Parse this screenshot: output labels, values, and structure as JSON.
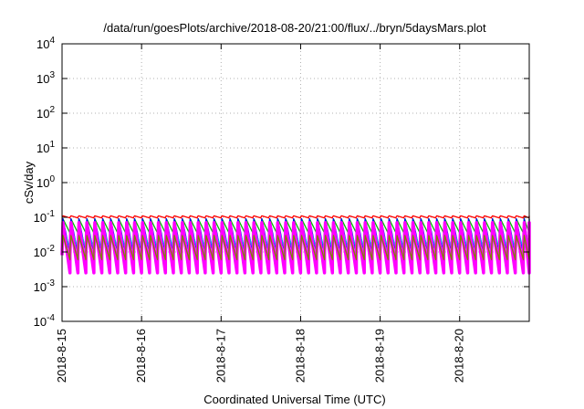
{
  "chart_data": {
    "type": "area",
    "title": "/data/run/goesPlots/archive/2018-08-20/21:00/flux/../bryn/5daysMars.plot",
    "xlabel": "Coordinated Universal Time (UTC)",
    "ylabel": "cSv/day",
    "yscale": "log",
    "ylim": [
      0.0001,
      10000
    ],
    "xlim": [
      "2018-08-15T00:00",
      "2018-08-20T21:00"
    ],
    "grid": true,
    "y_ticks": [
      {
        "base": "10",
        "exp": "-4"
      },
      {
        "base": "10",
        "exp": "-3"
      },
      {
        "base": "10",
        "exp": "-2"
      },
      {
        "base": "10",
        "exp": "-1"
      },
      {
        "base": "10",
        "exp": "0"
      },
      {
        "base": "10",
        "exp": "1"
      },
      {
        "base": "10",
        "exp": "2"
      },
      {
        "base": "10",
        "exp": "3"
      },
      {
        "base": "10",
        "exp": "4"
      }
    ],
    "x_ticks": [
      "2018-8-15",
      "2018-8-16",
      "2018-8-17",
      "2018-8-18",
      "2018-8-19",
      "2018-8-20"
    ],
    "oscillation_period_hours": 2.4,
    "series": [
      {
        "color": "#ff0000",
        "peak": 0.11,
        "trough": 0.095
      },
      {
        "color": "#00c000",
        "peak": 0.09,
        "trough": 0.035
      },
      {
        "color": "#0000ff",
        "peak": 0.09,
        "trough": 0.009
      },
      {
        "color": "#00b0e0",
        "peak": 0.06,
        "trough": 0.012
      },
      {
        "color": "#ff00ff",
        "peak": 0.07,
        "trough": 0.0025
      },
      {
        "color": "#808000",
        "peak": 0.03,
        "trough": 0.006
      }
    ]
  }
}
